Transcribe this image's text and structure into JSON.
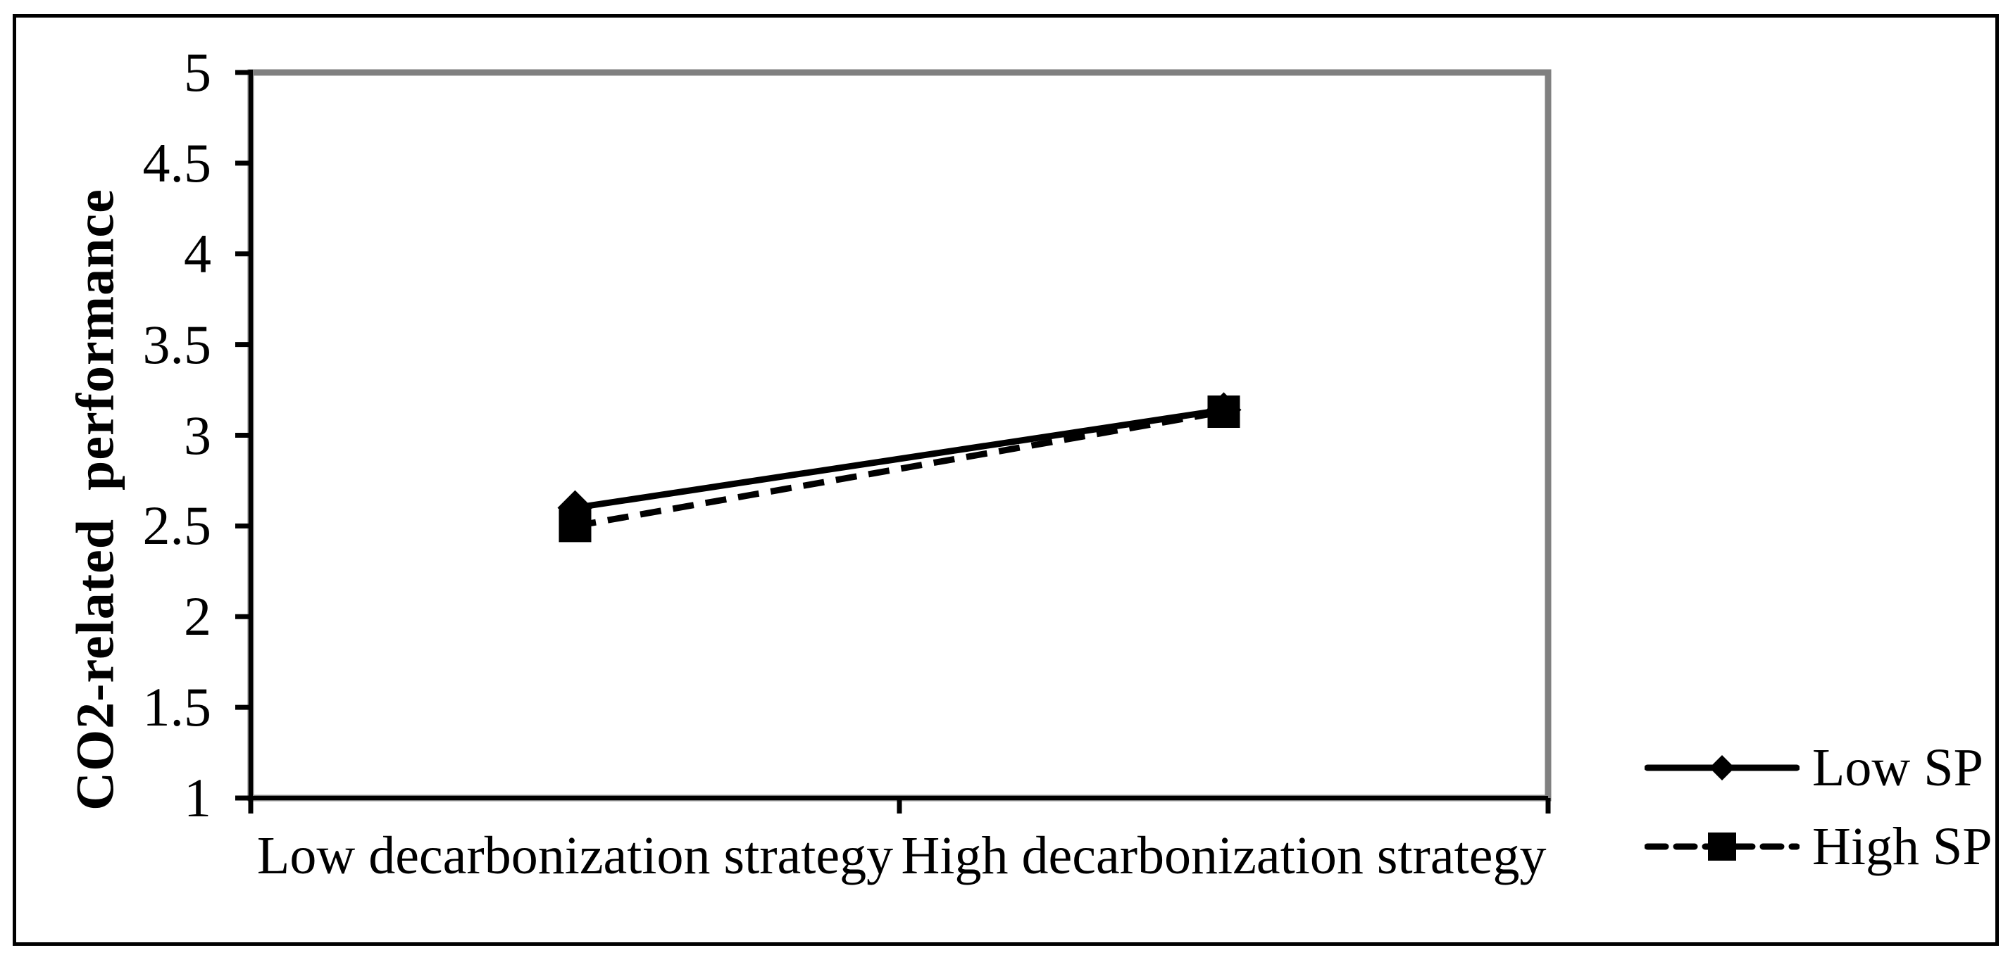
{
  "figure": {
    "background": "#ffffff",
    "border_color": "#000000"
  },
  "chart_data": {
    "type": "line",
    "title": "",
    "categories": [
      "Low decarbonization strategy",
      "High decarbonization strategy"
    ],
    "series": [
      {
        "name": "Low SP",
        "values": [
          2.6,
          3.14
        ],
        "line_style": "solid",
        "marker": "diamond",
        "color": "#000000"
      },
      {
        "name": "High SP",
        "values": [
          2.5,
          3.13
        ],
        "line_style": "dashed",
        "marker": "square",
        "color": "#000000"
      }
    ],
    "xlabel": "",
    "ylabel": "CO2-related  performance",
    "y_axis": {
      "min": 1,
      "max": 5,
      "step": 0.5,
      "tick_labels": [
        "1",
        "1.5",
        "2",
        "2.5",
        "3",
        "3.5",
        "4",
        "4.5",
        "5"
      ]
    },
    "x_axis": {
      "tick_labels": [
        "Low decarbonization strategy",
        "High decarbonization strategy"
      ]
    },
    "legend": {
      "position": "bottom-right",
      "entries": [
        "Low SP",
        "High SP"
      ]
    },
    "grid": false,
    "colors": {
      "series": "#000000",
      "plot_border": "#808080",
      "text": "#000000",
      "background": "#ffffff"
    }
  }
}
